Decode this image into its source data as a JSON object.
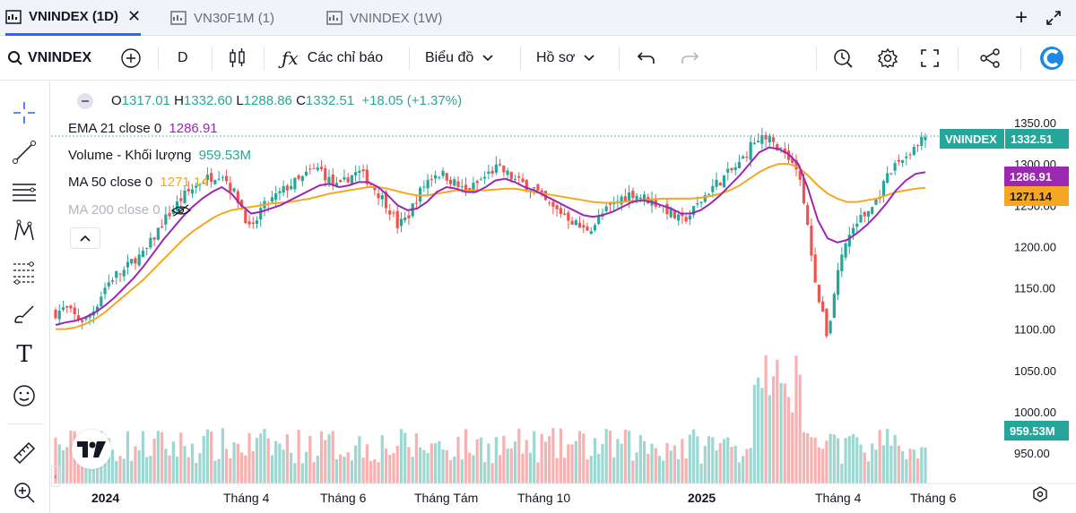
{
  "tabs": [
    {
      "label": "VNINDEX (1D)",
      "active": true
    },
    {
      "label": "VN30F1M (1)",
      "active": false
    },
    {
      "label": "VNINDEX (1W)",
      "active": false
    }
  ],
  "toolbar": {
    "symbol": "VNINDEX",
    "interval": "D",
    "indicators_label": "Các chỉ báo",
    "chart_type_label": "Biểu đồ",
    "profile_label": "Hồ sơ"
  },
  "legend": {
    "ohlc": {
      "o_label": "O",
      "o": "1317.01",
      "h_label": "H",
      "h": "1332.60",
      "l_label": "L",
      "l": "1288.86",
      "c_label": "C",
      "c": "1332.51",
      "change": "+18.05 (+1.37%)"
    },
    "ema": {
      "label": "EMA 21 close 0",
      "value": "1286.91"
    },
    "volume": {
      "label": "Volume - Khối lượng",
      "value": "959.53M"
    },
    "ma50": {
      "label": "MA 50 close 0",
      "value": "1271.14"
    },
    "ma200": {
      "label": "MA 200 close 0"
    }
  },
  "colors": {
    "up": "#26a69a",
    "down": "#ef5350",
    "ema": "#9c27b0",
    "ma50": "#f5a623",
    "accent": "#2962ff"
  },
  "price_tags": {
    "last_symbol": "VNINDEX",
    "last_value": "1332.51",
    "ema_value": "1286.91",
    "ma50_value": "1271.14",
    "volume_value": "959.53M"
  },
  "chart_data": {
    "type": "candlestick",
    "y_ticks": [
      "1350.00",
      "1300.00",
      "1250.00",
      "1200.00",
      "1150.00",
      "1100.00",
      "1050.00",
      "1000.00",
      "950.00"
    ],
    "x_ticks": [
      "2024",
      "Tháng 4",
      "Tháng 6",
      "Tháng Tám",
      "Tháng 10",
      "2025",
      "Tháng 4",
      "Tháng 6"
    ],
    "ylim": [
      940,
      1365
    ],
    "close_path": [
      1120,
      1125,
      1115,
      1110,
      1125,
      1150,
      1165,
      1170,
      1185,
      1190,
      1210,
      1230,
      1245,
      1260,
      1270,
      1280,
      1285,
      1290,
      1270,
      1250,
      1215,
      1245,
      1255,
      1265,
      1275,
      1280,
      1290,
      1295,
      1280,
      1270,
      1285,
      1290,
      1280,
      1265,
      1250,
      1225,
      1235,
      1260,
      1280,
      1290,
      1285,
      1275,
      1265,
      1275,
      1285,
      1295,
      1290,
      1280,
      1275,
      1270,
      1255,
      1245,
      1240,
      1230,
      1220,
      1225,
      1240,
      1250,
      1260,
      1265,
      1260,
      1255,
      1250,
      1240,
      1230,
      1240,
      1255,
      1270,
      1280,
      1290,
      1300,
      1320,
      1335,
      1330,
      1320,
      1310,
      1290,
      1220,
      1140,
      1090,
      1170,
      1210,
      1230,
      1240,
      1255,
      1280,
      1300,
      1310,
      1320,
      1332
    ],
    "ema21": [
      1105,
      1108,
      1110,
      1114,
      1120,
      1128,
      1138,
      1150,
      1162,
      1176,
      1192,
      1208,
      1222,
      1236,
      1248,
      1258,
      1266,
      1272,
      1264,
      1250,
      1240,
      1242,
      1246,
      1250,
      1256,
      1262,
      1268,
      1274,
      1276,
      1272,
      1274,
      1278,
      1278,
      1272,
      1262,
      1250,
      1244,
      1246,
      1254,
      1266,
      1272,
      1270,
      1266,
      1266,
      1272,
      1280,
      1282,
      1278,
      1272,
      1268,
      1262,
      1256,
      1250,
      1244,
      1238,
      1236,
      1238,
      1242,
      1248,
      1254,
      1256,
      1254,
      1250,
      1246,
      1240,
      1240,
      1244,
      1252,
      1262,
      1274,
      1286,
      1300,
      1314,
      1320,
      1318,
      1312,
      1300,
      1270,
      1232,
      1210,
      1205,
      1208,
      1216,
      1226,
      1238,
      1252,
      1268,
      1280,
      1288,
      1290
    ],
    "ma50": [
      1100,
      1100,
      1102,
      1106,
      1112,
      1120,
      1130,
      1140,
      1150,
      1160,
      1172,
      1184,
      1196,
      1208,
      1218,
      1226,
      1234,
      1240,
      1244,
      1246,
      1248,
      1250,
      1252,
      1253,
      1254,
      1256,
      1258,
      1261,
      1264,
      1266,
      1268,
      1270,
      1272,
      1272,
      1270,
      1267,
      1264,
      1262,
      1262,
      1264,
      1266,
      1268,
      1268,
      1268,
      1268,
      1269,
      1270,
      1270,
      1268,
      1266,
      1264,
      1262,
      1260,
      1258,
      1256,
      1254,
      1253,
      1253,
      1254,
      1255,
      1256,
      1257,
      1258,
      1258,
      1258,
      1258,
      1259,
      1261,
      1264,
      1268,
      1274,
      1282,
      1290,
      1296,
      1300,
      1300,
      1296,
      1286,
      1274,
      1264,
      1258,
      1254,
      1254,
      1256,
      1258,
      1262,
      1266,
      1268,
      1270,
      1271
    ]
  }
}
